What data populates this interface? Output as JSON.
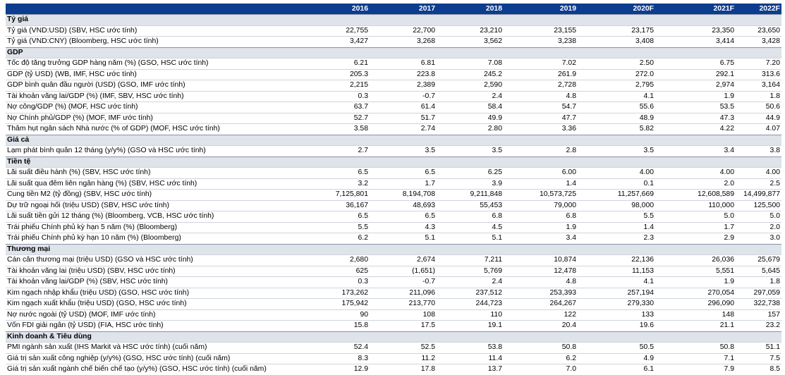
{
  "table": {
    "years": [
      "2016",
      "2017",
      "2018",
      "2019",
      "2020F",
      "2021F",
      "2022F"
    ],
    "sections": [
      {
        "title": "Tỷ giá",
        "rows": [
          {
            "label": "Tỷ giá (VND:USD) (SBV, HSC ước tính)",
            "values": [
              "22,755",
              "22,700",
              "23,210",
              "23,155",
              "23,175",
              "23,350",
              "23,650"
            ]
          },
          {
            "label": "Tỷ giá (VND:CNY) (Bloomberg, HSC ước tính)",
            "values": [
              "3,427",
              "3,268",
              "3,562",
              "3,238",
              "3,408",
              "3,414",
              "3,428"
            ]
          }
        ]
      },
      {
        "title": "GDP",
        "rows": [
          {
            "label": "Tốc độ tăng trưởng GDP hàng năm (%) (GSO, HSC ước tính)",
            "values": [
              "6.21",
              "6.81",
              "7.08",
              "7.02",
              "2.50",
              "6.75",
              "7.20"
            ]
          },
          {
            "label": "GDP (tỷ USD) (WB, IMF, HSC ước tính)",
            "values": [
              "205.3",
              "223.8",
              "245.2",
              "261.9",
              "272.0",
              "292.1",
              "313.6"
            ]
          },
          {
            "label": "GDP bình quân đầu người (USD) (GSO, IMF ước tính)",
            "values": [
              "2,215",
              "2,389",
              "2,590",
              "2,728",
              "2,795",
              "2,974",
              "3,164"
            ]
          },
          {
            "label": "Tài khoản vãng lai/GDP (%) (IMF, SBV, HSC ước tính)",
            "values": [
              "0.3",
              "-0.7",
              "2.4",
              "4.8",
              "4.1",
              "1.9",
              "1.8"
            ]
          },
          {
            "label": "Nợ công/GDP (%) (MOF, HSC ước tính)",
            "values": [
              "63.7",
              "61.4",
              "58.4",
              "54.7",
              "55.6",
              "53.5",
              "50.6"
            ]
          },
          {
            "label": "Nợ Chính phủ/GDP (%) (MOF, IMF ước tính)",
            "values": [
              "52.7",
              "51.7",
              "49.9",
              "47.7",
              "48.9",
              "47.3",
              "44.9"
            ]
          },
          {
            "label": "Thâm hụt ngân sách Nhà nước (% of GDP) (MOF, HSC ước tính)",
            "values": [
              "3.58",
              "2.74",
              "2.80",
              "3.36",
              "5.82",
              "4.22",
              "4.07"
            ]
          }
        ]
      },
      {
        "title": "Giá cả",
        "rows": [
          {
            "label": "Lạm phát bình quân 12 tháng (y/y%) (GSO và HSC ước tính)",
            "values": [
              "2.7",
              "3.5",
              "3.5",
              "2.8",
              "3.5",
              "3.4",
              "3.8"
            ]
          }
        ]
      },
      {
        "title": "Tiền tệ",
        "rows": [
          {
            "label": "Lãi suất điều hành (%) (SBV, HSC ước tính)",
            "values": [
              "6.5",
              "6.5",
              "6.25",
              "6.00",
              "4.00",
              "4.00",
              "4.00"
            ]
          },
          {
            "label": "Lãi suất qua đêm liên ngân hàng (%) (SBV, HSC ước tính)",
            "values": [
              "3.2",
              "1.7",
              "3.9",
              "1.4",
              "0.1",
              "2.0",
              "2.5"
            ]
          },
          {
            "label": "Cung tiền M2 (tỷ đồng) (SBV, HSC ước tính)",
            "values": [
              "7,125,801",
              "8,194,708",
              "9,211,848",
              "10,573,725",
              "11,257,669",
              "12,608,589",
              "14,499,877"
            ]
          },
          {
            "label": "Dự trữ ngoại hối (triệu USD) (SBV, HSC ước tính)",
            "values": [
              "36,167",
              "48,693",
              "55,453",
              "79,000",
              "98,000",
              "110,000",
              "125,500"
            ]
          },
          {
            "label": "Lãi suất tiền gửi 12 tháng (%) (Bloomberg, VCB, HSC ước tính)",
            "values": [
              "6.5",
              "6.5",
              "6.8",
              "6.8",
              "5.5",
              "5.0",
              "5.0"
            ]
          },
          {
            "label": "Trái phiếu Chính phủ kỳ hạn 5 năm (%) (Bloomberg)",
            "values": [
              "5.5",
              "4.3",
              "4.5",
              "1.9",
              "1.4",
              "1.7",
              "2.0"
            ]
          },
          {
            "label": "Trái phiếu Chính phủ kỳ hạn 10 năm (%) (Bloomberg)",
            "values": [
              "6.2",
              "5.1",
              "5.1",
              "3.4",
              "2.3",
              "2.9",
              "3.0"
            ]
          }
        ]
      },
      {
        "title": "Thương mại",
        "rows": [
          {
            "label": "Cán cân thương mại (triệu USD) (GSO và HSC ước tính)",
            "values": [
              "2,680",
              "2,674",
              "7,211",
              "10,874",
              "22,136",
              "26,036",
              "25,679"
            ]
          },
          {
            "label": "Tài khoản vãng lai (triệu USD) (SBV, HSC ước tính)",
            "values": [
              "625",
              "(1,651)",
              "5,769",
              "12,478",
              "11,153",
              "5,551",
              "5,645"
            ]
          },
          {
            "label": "Tài khoản vãng lai/GDP (%) (SBV, HSC ước tính)",
            "values": [
              "0.3",
              "-0.7",
              "2.4",
              "4.8",
              "4.1",
              "1.9",
              "1.8"
            ]
          },
          {
            "label": "Kim ngạch nhập khẩu (triệu USD) (GSO, HSC ước tính)",
            "values": [
              "173,262",
              "211,096",
              "237,512",
              "253,393",
              "257,194",
              "270,054",
              "297,059"
            ]
          },
          {
            "label": "Kim ngạch xuất khẩu (triệu USD) (GSO, HSC ước tính)",
            "values": [
              "175,942",
              "213,770",
              "244,723",
              "264,267",
              "279,330",
              "296,090",
              "322,738"
            ]
          },
          {
            "label": "Nợ nước ngoài (tỷ USD) (MOF, IMF ước tính)",
            "values": [
              "90",
              "108",
              "110",
              "122",
              "133",
              "148",
              "157"
            ]
          },
          {
            "label": "Vốn FDI giải ngân (tỷ USD) (FIA, HSC ước tính)",
            "values": [
              "15.8",
              "17.5",
              "19.1",
              "20.4",
              "19.6",
              "21.1",
              "23.2"
            ]
          }
        ]
      },
      {
        "title": "Kinh doanh & Tiêu dùng",
        "rows": [
          {
            "label": "PMI ngành sản xuất (IHS Markit và HSC ước tính) (cuối năm)",
            "values": [
              "52.4",
              "52.5",
              "53.8",
              "50.8",
              "50.5",
              "50.8",
              "51.1"
            ]
          },
          {
            "label": "Giá trị sản xuất công nghiệp (y/y%) (GSO, HSC ước tính) (cuối năm)",
            "values": [
              "8.3",
              "11.2",
              "11.4",
              "6.2",
              "4.9",
              "7.1",
              "7.5"
            ]
          },
          {
            "label": "Giá trị sản xuất ngành chế biến chế tạo (y/y%) (GSO, HSC ước tính) (cuối năm)",
            "values": [
              "12.9",
              "17.8",
              "13.7",
              "7.0",
              "6.1",
              "7.9",
              "8.5"
            ]
          }
        ]
      }
    ]
  }
}
